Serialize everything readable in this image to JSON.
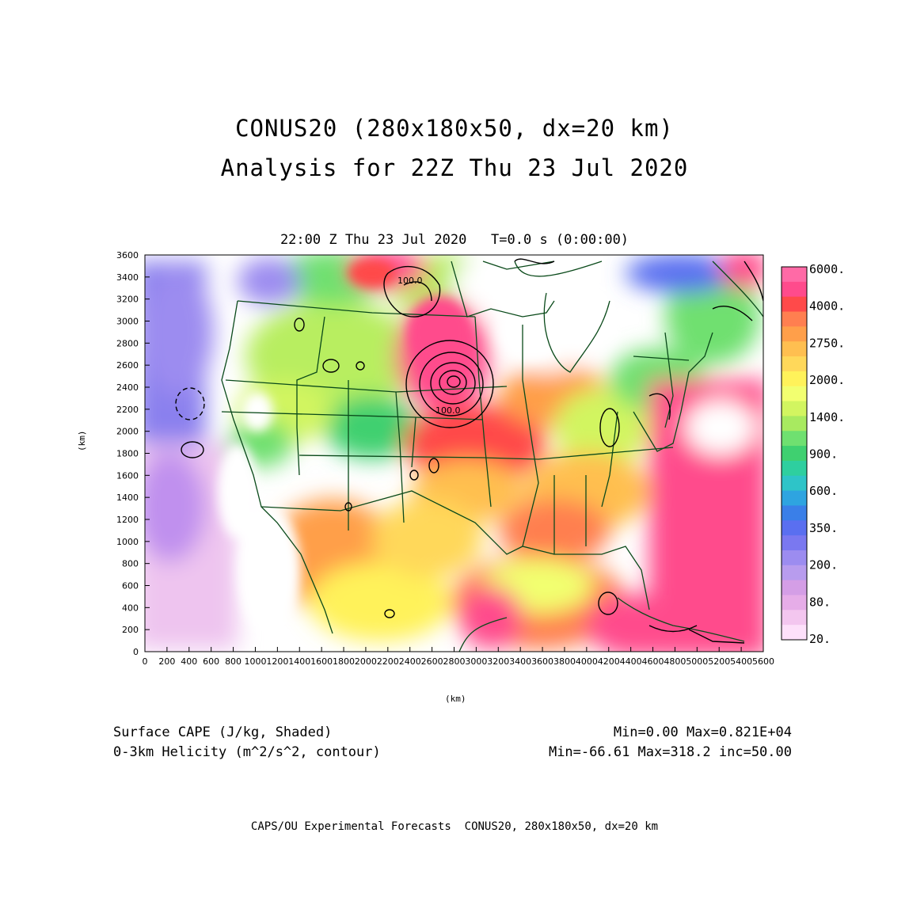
{
  "titles": {
    "line1": "CONUS20 (280x180x50, dx=20 km)",
    "line2": "Analysis for 22Z Thu 23 Jul 2020",
    "plot_title": "22:00 Z Thu 23 Jul 2020   T=0.0 s (0:00:00)"
  },
  "axes": {
    "xlabel": "(km)",
    "ylabel": "(km)",
    "x_ticks": [
      "0",
      "200",
      "400",
      "600",
      "800",
      "1000",
      "1200",
      "1400",
      "1600",
      "1800",
      "2000",
      "2200",
      "2400",
      "2600",
      "2800",
      "3000",
      "3200",
      "3400",
      "3600",
      "3800",
      "4000",
      "4200",
      "4400",
      "4600",
      "4800",
      "5000",
      "5200",
      "5400",
      "5600"
    ],
    "y_ticks": [
      "0",
      "200",
      "400",
      "600",
      "800",
      "1000",
      "1200",
      "1400",
      "1600",
      "1800",
      "2000",
      "2200",
      "2400",
      "2600",
      "2800",
      "3000",
      "3200",
      "3400",
      "3600"
    ],
    "xlim": [
      0,
      5600
    ],
    "ylim": [
      0,
      3600
    ]
  },
  "colorbar": {
    "labels": [
      "6000.",
      "4000.",
      "2750.",
      "2000.",
      "1400.",
      "900.",
      "600.",
      "350.",
      "200.",
      "80.",
      "20."
    ],
    "colors": [
      "#ff6aa6",
      "#ff4b8c",
      "#ff4a4a",
      "#ff7f50",
      "#ff9f4a",
      "#ffbf50",
      "#ffd85a",
      "#fff25a",
      "#f2ff70",
      "#d2f560",
      "#a8ea60",
      "#6fe070",
      "#3fd070",
      "#2ecf9f",
      "#2ec4c8",
      "#2ea4e0",
      "#3a7fe8",
      "#5a6ff0",
      "#7a78f0",
      "#9c8cf0",
      "#b89cee",
      "#d49ee6",
      "#e6ade8",
      "#f3c6ef",
      "#fde0fa"
    ]
  },
  "contour_labels": [
    "100.0",
    "100.0"
  ],
  "fields": {
    "shaded": "Surface CAPE (J/kg, Shaded)",
    "contour": "0-3km Helicity (m^2/s^2, contour)",
    "shaded_stats": "Min=0.00 Max=0.821E+04",
    "contour_stats": "Min=-66.61 Max=318.2 inc=50.00"
  },
  "footer": "CAPS/OU Experimental Forecasts  CONUS20, 280x180x50, dx=20 km"
}
